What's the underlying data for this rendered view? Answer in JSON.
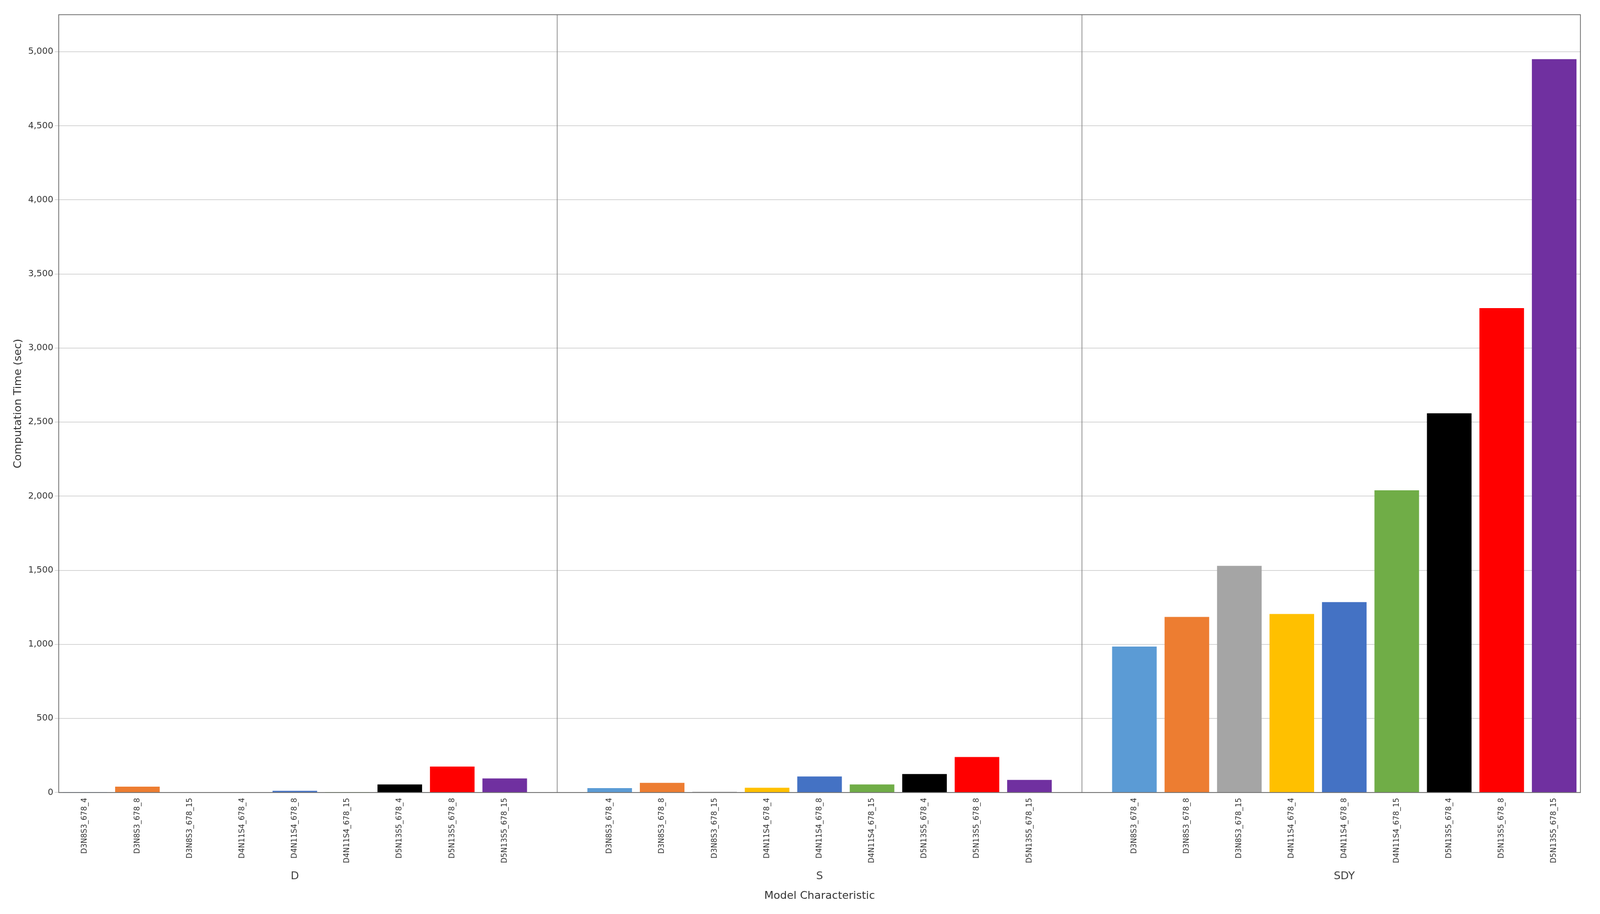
{
  "chart_data": {
    "type": "bar",
    "categories": [
      "D3N8S3_678_4",
      "D3N8S3_678_8",
      "D3N8S3_678_15",
      "D4N11S4_678_4",
      "D4N11S4_678_8",
      "D4N11S4_678_15",
      "D5N13S5_678_4",
      "D5N13S5_678_8",
      "D5N13S5_678_15",
      "D3N8S3_678_4",
      "D3N8S3_678_8",
      "D3N8S3_678_15",
      "D4N11S4_678_4",
      "D4N11S4_678_8",
      "D4N11S4_678_15",
      "D5N13S5_678_4",
      "D5N13S5_678_8",
      "D5N13S5_678_15",
      "D3N8S3_678_4",
      "D3N8S3_678_8",
      "D3N8S3_678_15",
      "D4N11S4_678_4",
      "D4N11S4_678_8",
      "D4N11S4_678_15",
      "D5N13S5_678_4",
      "D5N13S5_678_8",
      "D5N13S5_678_15"
    ],
    "groups": [
      "D",
      "S",
      "SDY"
    ],
    "values": [
      3,
      40,
      2,
      2,
      12,
      3,
      55,
      175,
      95,
      30,
      65,
      5,
      32,
      108,
      55,
      125,
      240,
      85,
      985,
      1185,
      1530,
      1205,
      1285,
      2040,
      2560,
      3270,
      4950
    ],
    "colors": [
      "#5B9BD5",
      "#ED7D31",
      "#A5A5A5",
      "#FFC000",
      "#4472C4",
      "#70AD47",
      "#000000",
      "#FF0000",
      "#7030A0",
      "#5B9BD5",
      "#ED7D31",
      "#A5A5A5",
      "#FFC000",
      "#4472C4",
      "#70AD47",
      "#000000",
      "#FF0000",
      "#7030A0",
      "#5B9BD5",
      "#ED7D31",
      "#A5A5A5",
      "#FFC000",
      "#4472C4",
      "#70AD47",
      "#000000",
      "#FF0000",
      "#7030A0"
    ],
    "xlabel": "Model Characteristic",
    "ylabel": "Computation Time (sec)",
    "ylim": [
      0,
      5250
    ],
    "yticks": [
      0,
      500,
      {
        "value": 1000,
        "label": "1,000"
      },
      {
        "value": 1500,
        "label": "1,500"
      },
      {
        "value": 2000,
        "label": "2,000"
      },
      {
        "value": 2500,
        "label": "2,500"
      },
      {
        "value": 3000,
        "label": "3,000"
      },
      {
        "value": 3500,
        "label": "3,500"
      },
      {
        "value": 4000,
        "label": "4,000"
      },
      {
        "value": 4500,
        "label": "4,500"
      },
      {
        "value": 5000,
        "label": "5,000"
      }
    ],
    "grid": true
  }
}
